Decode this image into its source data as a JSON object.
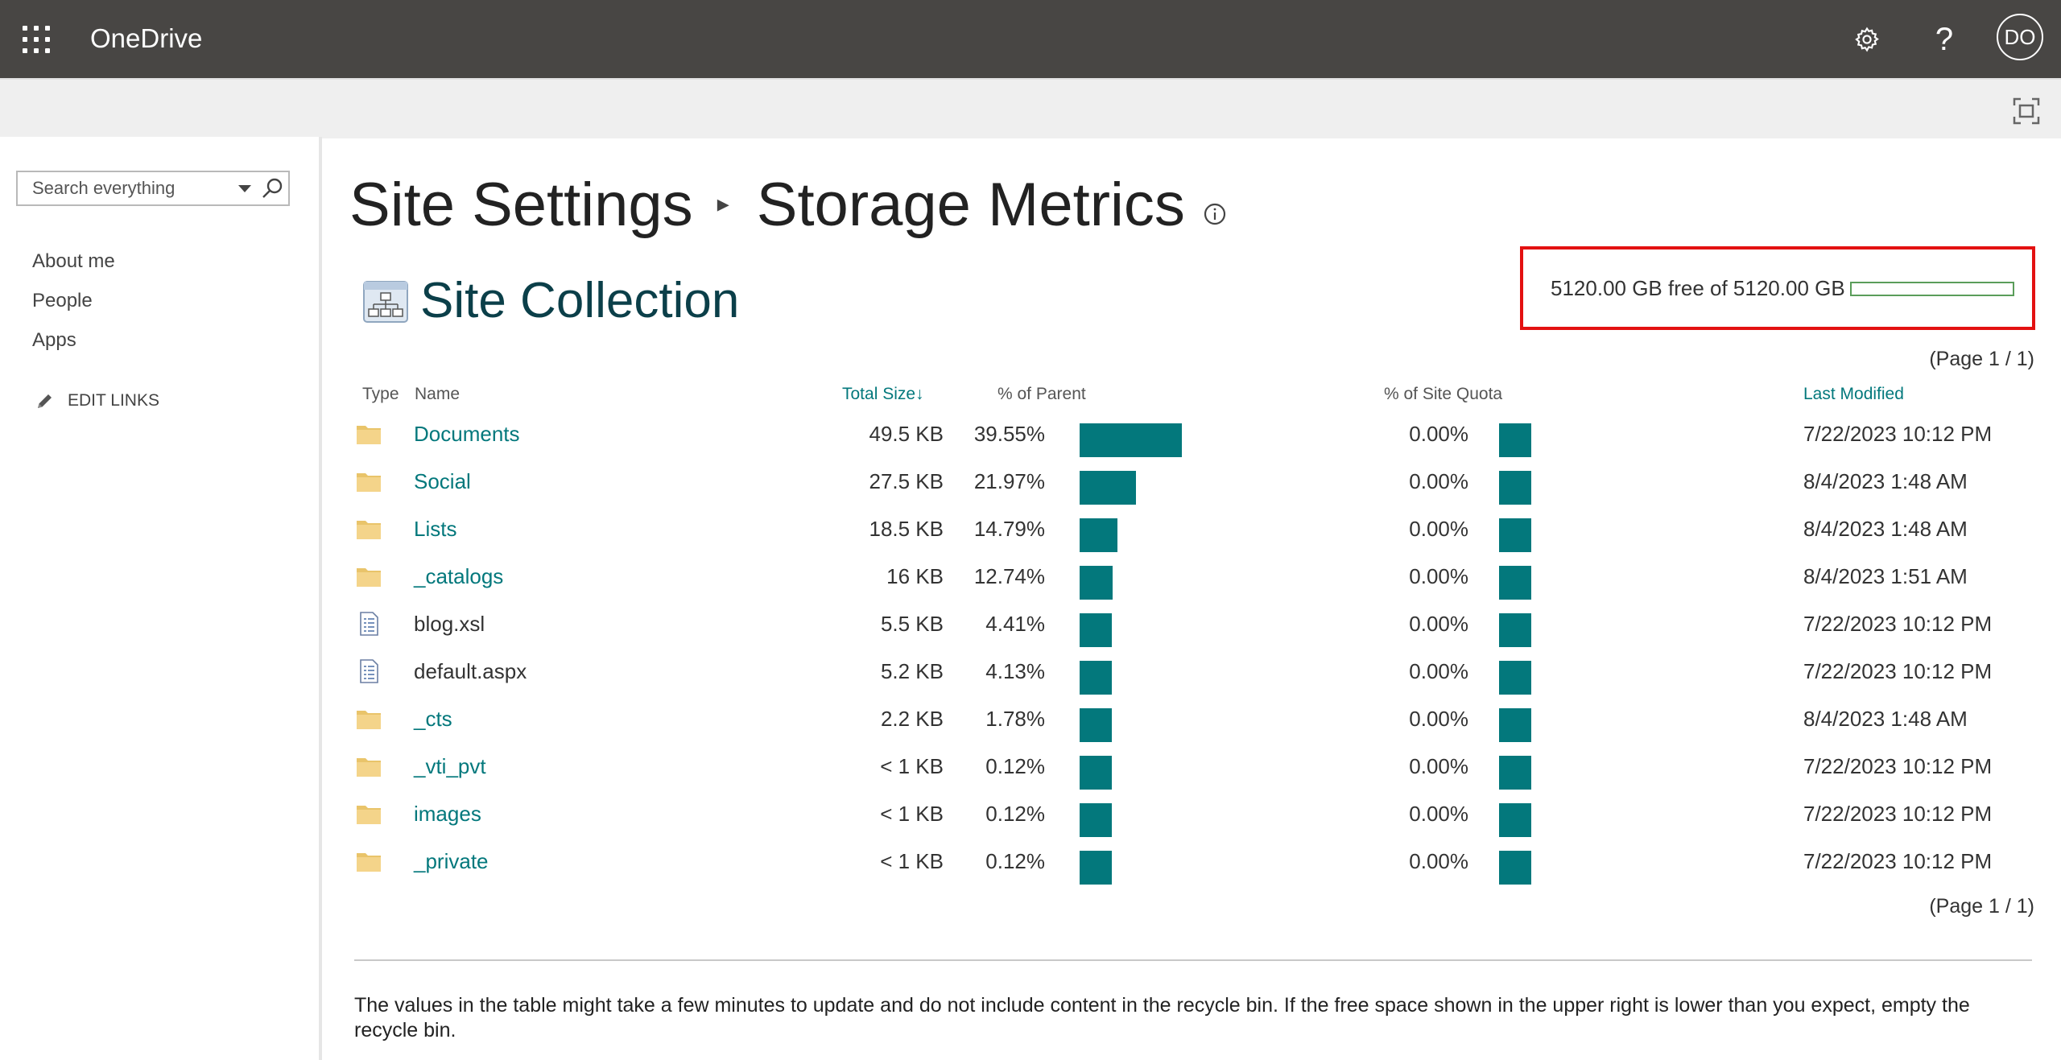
{
  "suitebar": {
    "app_name": "OneDrive",
    "avatar_initials": "DO",
    "help_glyph": "?"
  },
  "leftnav": {
    "search_placeholder": "Search everything",
    "items": [
      "About me",
      "People",
      "Apps"
    ],
    "edit_links_label": "EDIT LINKS"
  },
  "page": {
    "breadcrumb_parent": "Site Settings",
    "breadcrumb_current": "Storage Metrics",
    "section_title": "Site Collection",
    "quota_text": "5120.00 GB free of 5120.00 GB",
    "quota_used_fraction": 0,
    "pager_label": "(Page 1 / 1)",
    "footnote": "The values in the table might take a few minutes to update and do not include content in the recycle bin. If the free space shown in the upper right is lower than you expect, empty the recycle bin."
  },
  "table": {
    "headers": {
      "type": "Type",
      "name": "Name",
      "total_size": "Total Size",
      "sort_glyph": "↓",
      "pct_parent": "% of Parent",
      "pct_quota": "% of Site Quota",
      "last_modified": "Last Modified"
    },
    "rows": [
      {
        "kind": "folder",
        "name": "Documents",
        "size": "49.5 KB",
        "pct_parent": "39.55%",
        "parent_fraction": 0.3955,
        "pct_quota": "0.00%",
        "modified": "7/22/2023 10:12 PM"
      },
      {
        "kind": "folder",
        "name": "Social",
        "size": "27.5 KB",
        "pct_parent": "21.97%",
        "parent_fraction": 0.2197,
        "pct_quota": "0.00%",
        "modified": "8/4/2023 1:48 AM"
      },
      {
        "kind": "folder",
        "name": "Lists",
        "size": "18.5 KB",
        "pct_parent": "14.79%",
        "parent_fraction": 0.1479,
        "pct_quota": "0.00%",
        "modified": "8/4/2023 1:48 AM"
      },
      {
        "kind": "folder",
        "name": "_catalogs",
        "size": "16 KB",
        "pct_parent": "12.74%",
        "parent_fraction": 0.1274,
        "pct_quota": "0.00%",
        "modified": "8/4/2023 1:51 AM"
      },
      {
        "kind": "file",
        "name": "blog.xsl",
        "size": "5.5 KB",
        "pct_parent": "4.41%",
        "parent_fraction": 0.0441,
        "pct_quota": "0.00%",
        "modified": "7/22/2023 10:12 PM"
      },
      {
        "kind": "file",
        "name": "default.aspx",
        "size": "5.2 KB",
        "pct_parent": "4.13%",
        "parent_fraction": 0.0413,
        "pct_quota": "0.00%",
        "modified": "7/22/2023 10:12 PM"
      },
      {
        "kind": "folder",
        "name": "_cts",
        "size": "2.2 KB",
        "pct_parent": "1.78%",
        "parent_fraction": 0.0178,
        "pct_quota": "0.00%",
        "modified": "8/4/2023 1:48 AM"
      },
      {
        "kind": "folder",
        "name": "_vti_pvt",
        "size": "< 1 KB",
        "pct_parent": "0.12%",
        "parent_fraction": 0.0012,
        "pct_quota": "0.00%",
        "modified": "7/22/2023 10:12 PM"
      },
      {
        "kind": "folder",
        "name": "images",
        "size": "< 1 KB",
        "pct_parent": "0.12%",
        "parent_fraction": 0.0012,
        "pct_quota": "0.00%",
        "modified": "7/22/2023 10:12 PM"
      },
      {
        "kind": "folder",
        "name": "_private",
        "size": "< 1 KB",
        "pct_parent": "0.12%",
        "parent_fraction": 0.0012,
        "pct_quota": "0.00%",
        "modified": "7/22/2023 10:12 PM"
      }
    ]
  },
  "icons": {
    "waffle": "app-launcher-icon",
    "gear": "gear-icon",
    "help": "help-icon",
    "focus": "focus-mode-icon",
    "search": "search-icon",
    "dropdown": "chevron-down-icon",
    "edit": "pencil-icon",
    "info": "info-icon",
    "site_collection": "site-collection-icon",
    "folder": "folder-icon",
    "file": "document-icon"
  },
  "colors": {
    "suitebar": "#484644",
    "accent": "#03787c",
    "title": "#0b3f49",
    "highlight_border": "#e31111",
    "quota_border": "#5a9d5a"
  }
}
